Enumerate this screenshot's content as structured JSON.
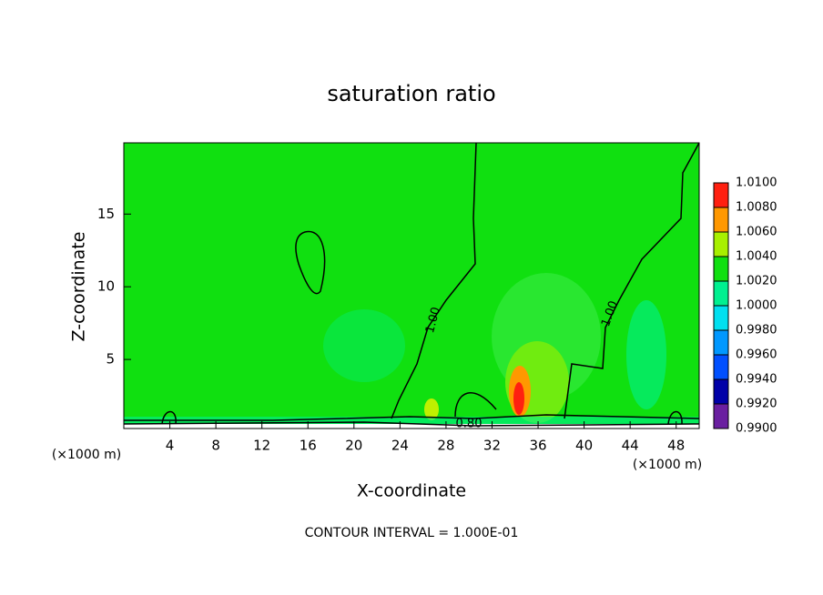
{
  "chart_data": {
    "type": "contour",
    "title": "saturation ratio",
    "x_label": "X-coordinate",
    "y_label": "Z-coordinate",
    "x_unit": "(×1000 m)",
    "footnote": "CONTOUR INTERVAL = 1.000E-01",
    "xlim": [
      0,
      50
    ],
    "xticks": [
      4,
      8,
      12,
      16,
      20,
      24,
      28,
      32,
      36,
      40,
      44,
      48
    ],
    "ylim": [
      0.25,
      19.9
    ],
    "yticks": [
      5,
      10,
      15
    ],
    "contour_labels": [
      "1.00",
      "1.00",
      "0.80"
    ],
    "levels": [
      {
        "value": 0.99,
        "label": "0.9900"
      },
      {
        "value": 0.992,
        "label": "0.9920"
      },
      {
        "value": 0.994,
        "label": "0.9940"
      },
      {
        "value": 0.996,
        "label": "0.9960"
      },
      {
        "value": 0.998,
        "label": "0.9980"
      },
      {
        "value": 1.0,
        "label": "1.0000"
      },
      {
        "value": 1.002,
        "label": "1.0020"
      },
      {
        "value": 1.004,
        "label": "1.0040"
      },
      {
        "value": 1.006,
        "label": "1.0060"
      },
      {
        "value": 1.008,
        "label": "1.0080"
      },
      {
        "value": 1.01,
        "label": "1.0100"
      }
    ],
    "colors": [
      "#6a1fa0",
      "#0000a8",
      "#0050ff",
      "#0098ff",
      "#00e0f0",
      "#00f090",
      "#10e010",
      "#a8f000",
      "#ff9800",
      "#ff2010",
      "#ff9090"
    ]
  }
}
